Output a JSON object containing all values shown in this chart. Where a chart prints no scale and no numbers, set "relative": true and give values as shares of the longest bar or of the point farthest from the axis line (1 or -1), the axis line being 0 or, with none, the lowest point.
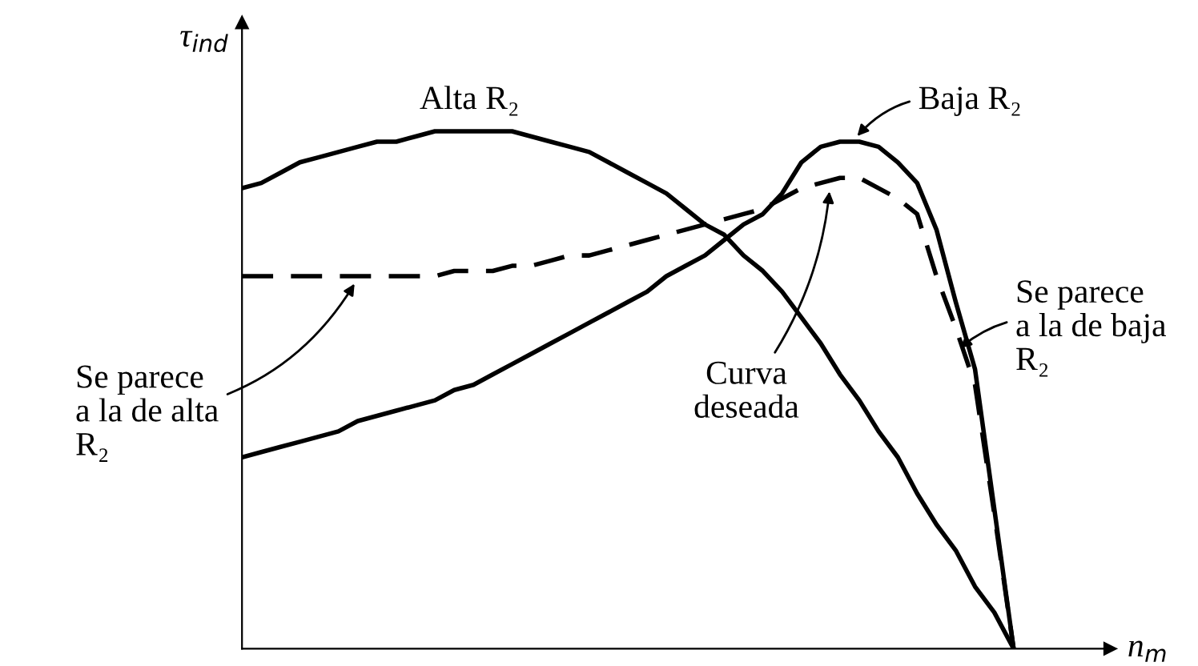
{
  "chart_data": {
    "type": "line",
    "relative": true,
    "xlabel": "n$_{m}$",
    "ylabel": "τ$_{ind}$",
    "grid": false,
    "legend": false,
    "marker": "none",
    "categories": [
      null,
      null,
      null,
      null,
      null,
      null,
      null,
      null,
      null,
      null,
      null,
      null,
      null,
      null,
      null,
      null,
      null,
      null,
      null,
      null,
      null,
      null,
      null,
      null,
      null,
      null,
      null,
      null,
      null,
      null,
      null,
      null,
      null,
      null,
      null,
      null,
      null,
      null,
      null,
      null,
      null,
      null,
      null,
      null,
      null,
      null
    ],
    "series": [
      {
        "name": "Alta R₂",
        "color": "#000000",
        "line_style": "solid",
        "values": [
          0.89,
          0.9,
          0.92,
          0.94,
          0.95,
          0.96,
          0.97,
          0.98,
          0.98,
          0.99,
          1.0,
          1.0,
          1.0,
          1.0,
          1.0,
          0.99,
          0.98,
          0.97,
          0.96,
          0.94,
          0.92,
          0.9,
          0.88,
          0.85,
          0.82,
          0.8,
          0.76,
          0.73,
          0.69,
          0.64,
          0.59,
          0.53,
          0.48,
          0.42,
          0.37,
          0.3,
          0.24,
          0.19,
          0.12,
          0.07,
          0,
          null,
          null,
          null,
          null,
          null
        ]
      },
      {
        "color": "#000000",
        "line_style": "solid",
        "values": [
          0.37,
          0.38,
          0.39,
          0.4,
          0.41,
          0.42,
          0.44,
          0.45,
          0.46,
          0.47,
          0.48,
          0.5,
          0.51,
          0.53,
          0.55,
          0.57,
          0.59,
          0.61,
          0.63,
          0.65,
          0.67,
          0.69,
          0.72,
          0.74,
          0.76,
          0.79,
          0.82,
          0.84,
          0.88,
          0.94,
          0.97,
          0.98,
          0.98,
          0.97,
          0.94,
          0.9,
          0.81,
          0.67,
          0.54,
          0.27,
          0,
          null,
          null,
          null,
          null,
          null
        ]
      },
      {
        "color": "#000000",
        "line_style": "dashed",
        "values": [
          0.72,
          0.72,
          0.72,
          0.72,
          0.72,
          0.72,
          0.72,
          0.72,
          0.72,
          0.72,
          0.72,
          0.73,
          0.73,
          0.73,
          0.74,
          0.74,
          0.75,
          0.76,
          0.76,
          0.77,
          0.78,
          0.79,
          0.8,
          0.81,
          0.82,
          0.83,
          0.84,
          0.85,
          0.87,
          0.89,
          0.9,
          0.91,
          0.91,
          0.89,
          0.87,
          0.84,
          0.72,
          0.62,
          0.51,
          0.26,
          0,
          null,
          null,
          null,
          null,
          null
        ]
      }
    ],
    "annotations": [
      "Baja R₂",
      "Se parece\na la de alta\nR₂",
      "Curva\ndeseada",
      "Se parece\na la de baja\nR₂"
    ]
  }
}
